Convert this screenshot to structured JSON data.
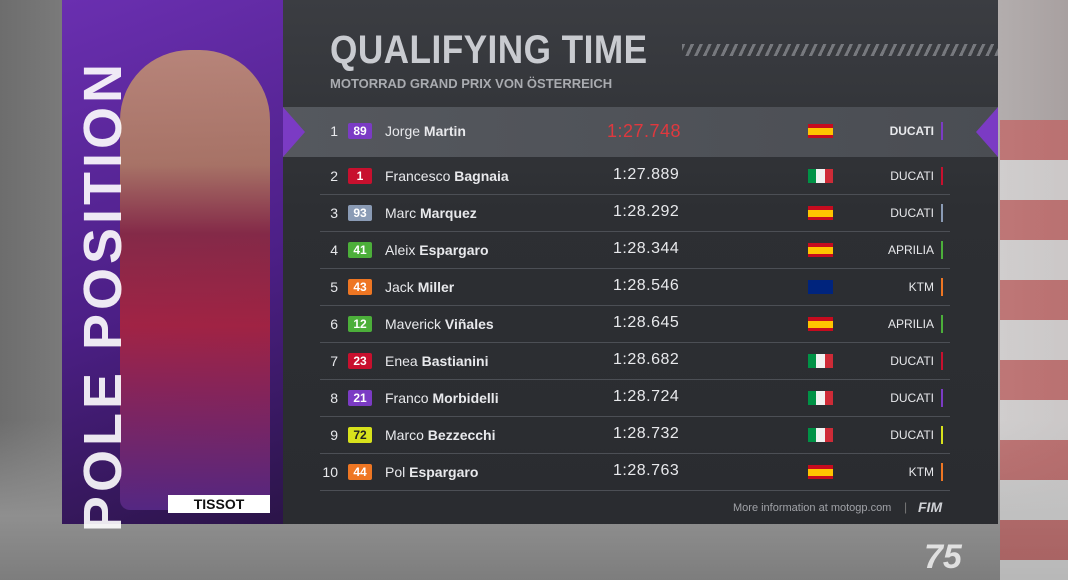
{
  "header": {
    "title": "QUALIFYING TIME",
    "subtitle": "MOTORRAD GRAND PRIX VON ÖSTERREICH"
  },
  "side": {
    "pole_text": "POLE POSITION",
    "sponsor": "TISSOT"
  },
  "table": {
    "rows": [
      {
        "pos": "1",
        "number": "89",
        "first": "Jorge",
        "last": "Martin",
        "time": "1:27.748",
        "team": "DUCATI",
        "color": "#7b3bc4",
        "flag_h": [
          "#c60b1e",
          "#ffc400",
          "#ffc400",
          "#c60b1e"
        ]
      },
      {
        "pos": "2",
        "number": "1",
        "first": "Francesco",
        "last": "Bagnaia",
        "time": "1:27.889",
        "team": "DUCATI",
        "color": "#c8102e",
        "flag_v": [
          "#009246",
          "#f1f2f1",
          "#ce2b37"
        ]
      },
      {
        "pos": "3",
        "number": "93",
        "first": "Marc",
        "last": "Marquez",
        "time": "1:28.292",
        "team": "DUCATI",
        "color": "#8a9bb5",
        "flag_h": [
          "#c60b1e",
          "#ffc400",
          "#ffc400",
          "#c60b1e"
        ]
      },
      {
        "pos": "4",
        "number": "41",
        "first": "Aleix",
        "last": "Espargaro",
        "time": "1:28.344",
        "team": "APRILIA",
        "color": "#4caf3a",
        "flag_h": [
          "#c60b1e",
          "#ffc400",
          "#ffc400",
          "#c60b1e"
        ]
      },
      {
        "pos": "5",
        "number": "43",
        "first": "Jack",
        "last": "Miller",
        "time": "1:28.546",
        "team": "KTM",
        "color": "#ee7623",
        "flag_h": [
          "#00247d"
        ]
      },
      {
        "pos": "6",
        "number": "12",
        "first": "Maverick",
        "last": "Viñales",
        "time": "1:28.645",
        "team": "APRILIA",
        "color": "#4caf3a",
        "flag_h": [
          "#c60b1e",
          "#ffc400",
          "#ffc400",
          "#c60b1e"
        ]
      },
      {
        "pos": "7",
        "number": "23",
        "first": "Enea",
        "last": "Bastianini",
        "time": "1:28.682",
        "team": "DUCATI",
        "color": "#c8102e",
        "flag_v": [
          "#009246",
          "#f1f2f1",
          "#ce2b37"
        ]
      },
      {
        "pos": "8",
        "number": "21",
        "first": "Franco",
        "last": "Morbidelli",
        "time": "1:28.724",
        "team": "DUCATI",
        "color": "#7b3bc4",
        "flag_v": [
          "#009246",
          "#f1f2f1",
          "#ce2b37"
        ]
      },
      {
        "pos": "9",
        "number": "72",
        "first": "Marco",
        "last": "Bezzecchi",
        "time": "1:28.732",
        "team": "DUCATI",
        "color": "#d8e21c",
        "flag_v": [
          "#009246",
          "#f1f2f1",
          "#ce2b37"
        ]
      },
      {
        "pos": "10",
        "number": "44",
        "first": "Pol",
        "last": "Espargaro",
        "time": "1:28.763",
        "team": "KTM",
        "color": "#ee7623",
        "flag_h": [
          "#c60b1e",
          "#ffc400",
          "#ffc400",
          "#c60b1e"
        ]
      }
    ]
  },
  "footer": {
    "info": "More information at motogp.com",
    "separator": "|",
    "fim": "FIM",
    "logo": "75"
  }
}
